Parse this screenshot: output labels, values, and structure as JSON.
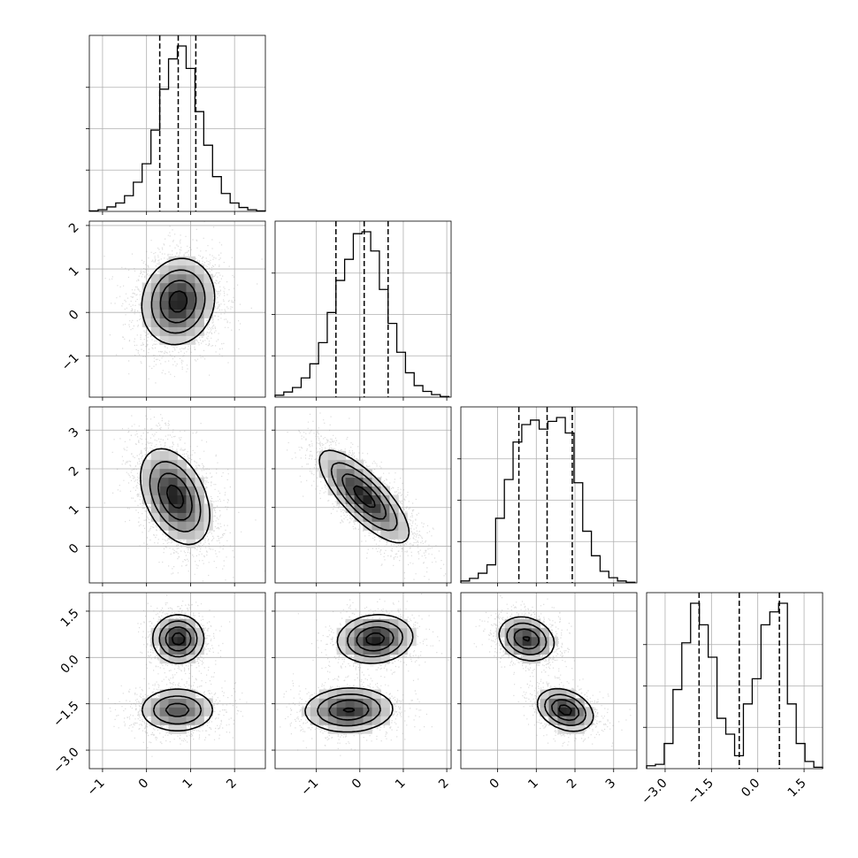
{
  "chart_data": {
    "type": "corner",
    "title": "",
    "parameters": 4,
    "axis_labels": [
      "",
      "",
      "",
      ""
    ],
    "ranges": [
      [
        -1.3,
        2.7
      ],
      [
        -1.95,
        2.1
      ],
      [
        -0.95,
        3.6
      ],
      [
        -3.6,
        2.1
      ]
    ],
    "ticks": [
      {
        "values": [
          -1,
          0,
          1,
          2
        ],
        "labels": [
          "−1",
          "0",
          "1",
          "2"
        ]
      },
      {
        "values": [
          -1,
          0,
          1,
          2
        ],
        "labels": [
          "−1",
          "0",
          "1",
          "2"
        ]
      },
      {
        "values": [
          0,
          1,
          2,
          3
        ],
        "labels": [
          "0",
          "1",
          "2",
          "3"
        ]
      },
      {
        "values": [
          -3.0,
          -1.5,
          0.0,
          1.5
        ],
        "labels": [
          "−3.0",
          "−1.5",
          "0.0",
          "1.5"
        ]
      }
    ],
    "y_tick_labels": [
      {
        "row": 1,
        "values": [
          -1,
          0,
          1,
          2
        ],
        "labels": [
          "−1",
          "0",
          "1",
          "2"
        ]
      },
      {
        "row": 2,
        "values": [
          0,
          1,
          2,
          3
        ],
        "labels": [
          "0",
          "1",
          "2",
          "3"
        ]
      },
      {
        "row": 3,
        "values": [
          -3.0,
          -1.5,
          0.0,
          1.5
        ],
        "labels": [
          "−3.0",
          "−1.5",
          "0.0",
          "1.5"
        ]
      }
    ],
    "histograms": [
      {
        "param": 0,
        "bin_start": -1.3,
        "bin_width": 0.2,
        "counts": [
          1,
          3,
          8,
          15,
          28,
          52,
          85,
          145,
          218,
          272,
          295,
          255,
          178,
          118,
          62,
          32,
          15,
          7,
          3,
          1
        ],
        "quantiles": [
          0.3,
          0.72,
          1.12
        ]
      },
      {
        "param": 1,
        "bin_start": -1.95,
        "bin_width": 0.2,
        "counts": [
          3,
          8,
          15,
          30,
          52,
          85,
          132,
          182,
          215,
          255,
          258,
          228,
          168,
          115,
          70,
          38,
          18,
          9,
          4,
          1
        ],
        "quantiles": [
          -0.55,
          0.1,
          0.65
        ]
      },
      {
        "param": 2,
        "bin_start": -0.95,
        "bin_width": 0.225,
        "counts": [
          3,
          7,
          15,
          28,
          100,
          160,
          218,
          245,
          252,
          238,
          250,
          256,
          232,
          155,
          80,
          42,
          18,
          8,
          3,
          1
        ],
        "quantiles": [
          0.55,
          1.28,
          1.93
        ]
      },
      {
        "param": 3,
        "bin_start": -3.6,
        "bin_width": 0.285,
        "counts": [
          4,
          6,
          35,
          110,
          175,
          230,
          200,
          155,
          70,
          48,
          18,
          90,
          125,
          200,
          218,
          230,
          90,
          35,
          10,
          2
        ],
        "quantiles": [
          -1.9,
          -0.6,
          0.7
        ]
      }
    ],
    "density_panels": [
      {
        "x": 0,
        "y": 1,
        "components": [
          {
            "mean": [
              0.72,
              0.25
            ],
            "sd": [
              0.4,
              0.48
            ],
            "rho": 0.1,
            "weight": 1
          }
        ]
      },
      {
        "x": 0,
        "y": 2,
        "components": [
          {
            "mean": [
              0.65,
              1.28
            ],
            "sd": [
              0.38,
              0.6
            ],
            "rho": -0.4,
            "weight": 1
          }
        ]
      },
      {
        "x": 1,
        "y": 2,
        "components": [
          {
            "mean": [
              0.1,
              1.28
            ],
            "sd": [
              0.5,
              0.58
            ],
            "rho": -0.78,
            "weight": 1
          }
        ]
      },
      {
        "x": 0,
        "y": 3,
        "components": [
          {
            "mean": [
              0.72,
              0.6
            ],
            "sd": [
              0.28,
              0.38
            ],
            "rho": 0,
            "weight": 0.5
          },
          {
            "mean": [
              0.7,
              -1.7
            ],
            "sd": [
              0.42,
              0.35
            ],
            "rho": 0,
            "weight": 0.5
          }
        ]
      },
      {
        "x": 1,
        "y": 3,
        "components": [
          {
            "mean": [
              0.35,
              0.6
            ],
            "sd": [
              0.42,
              0.38
            ],
            "rho": 0.1,
            "weight": 0.5
          },
          {
            "mean": [
              -0.25,
              -1.7
            ],
            "sd": [
              0.5,
              0.35
            ],
            "rho": 0.05,
            "weight": 0.5
          }
        ]
      },
      {
        "x": 2,
        "y": 3,
        "components": [
          {
            "mean": [
              0.75,
              0.6
            ],
            "sd": [
              0.35,
              0.35
            ],
            "rho": -0.2,
            "weight": 0.5
          },
          {
            "mean": [
              1.75,
              -1.7
            ],
            "sd": [
              0.35,
              0.33
            ],
            "rho": -0.3,
            "weight": 0.5
          }
        ]
      }
    ],
    "grid": true,
    "legend": "none"
  }
}
